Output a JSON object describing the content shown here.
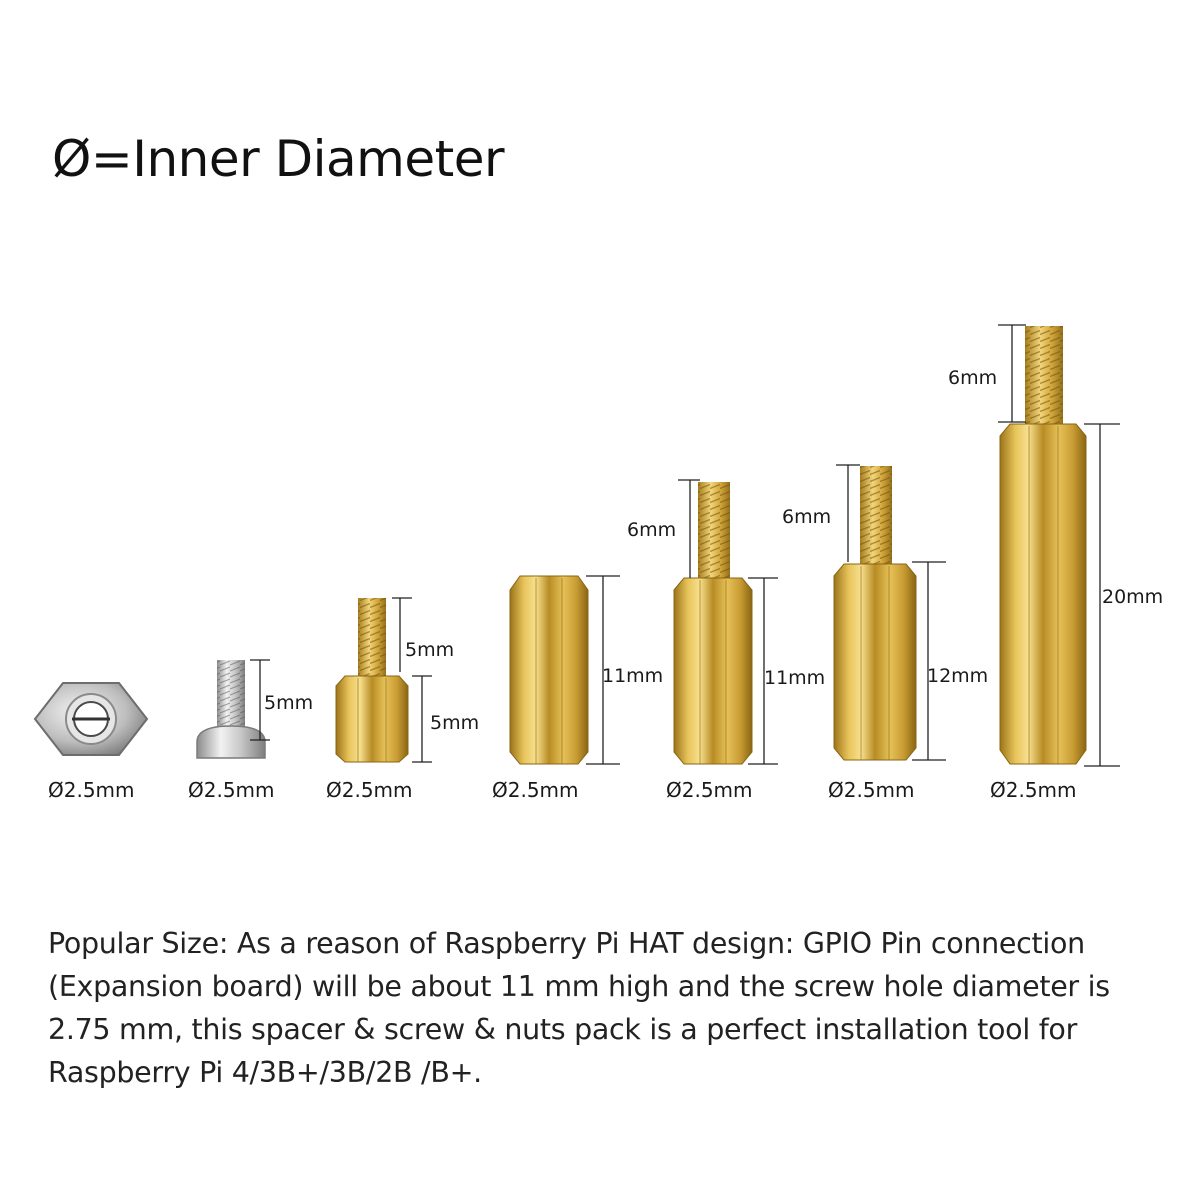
{
  "title": "Ø=Inner Diameter",
  "colors": {
    "brass_light": "#f3d77a",
    "brass_mid": "#d4aa3c",
    "brass_dark": "#8f6a16",
    "steel_light": "#f0f0f0",
    "steel_dark": "#8a8a8a",
    "line": "#222222"
  },
  "parts": [
    {
      "id": "nut",
      "diameter_label": "Ø2.5mm",
      "dims": []
    },
    {
      "id": "screw",
      "diameter_label": "Ø2.5mm",
      "dims": [
        "5mm"
      ]
    },
    {
      "id": "standoff-5-5",
      "diameter_label": "Ø2.5mm",
      "dims": [
        "5mm",
        "5mm"
      ]
    },
    {
      "id": "spacer-11",
      "diameter_label": "Ø2.5mm",
      "dims": [
        "11mm"
      ]
    },
    {
      "id": "standoff-11-6",
      "diameter_label": "Ø2.5mm",
      "dims": [
        "6mm",
        "11mm"
      ]
    },
    {
      "id": "standoff-12-6",
      "diameter_label": "Ø2.5mm",
      "dims": [
        "6mm",
        "12mm"
      ]
    },
    {
      "id": "standoff-20-6",
      "diameter_label": "Ø2.5mm",
      "dims": [
        "6mm",
        "20mm"
      ]
    }
  ],
  "description": "Popular Size:  As a reason of Raspberry Pi HAT design: GPIO Pin connection (Expansion board) will be about 11 mm high and the screw hole diameter is 2.75 mm, this spacer & screw & nuts pack is a perfect installation tool for Raspberry Pi 4/3B+/3B/2B /B+."
}
